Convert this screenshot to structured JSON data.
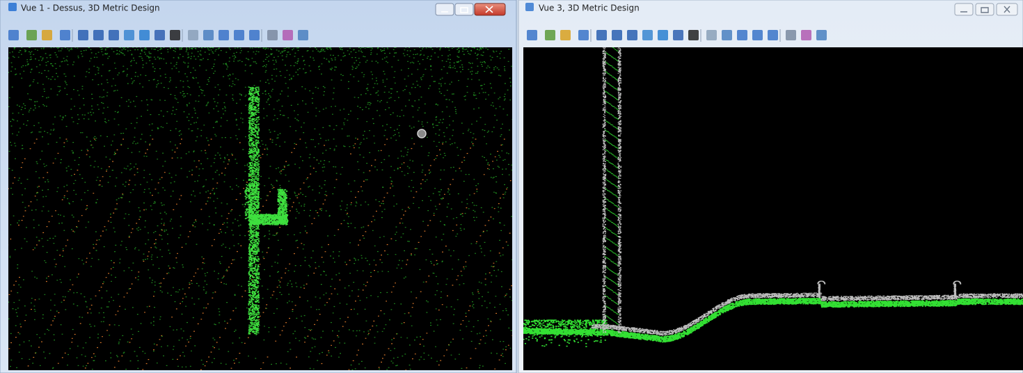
{
  "windows": [
    {
      "title": "Vue 1 - Dessus, 3D Metric Design"
    },
    {
      "title": "Vue 3, 3D Metric Design"
    }
  ]
}
